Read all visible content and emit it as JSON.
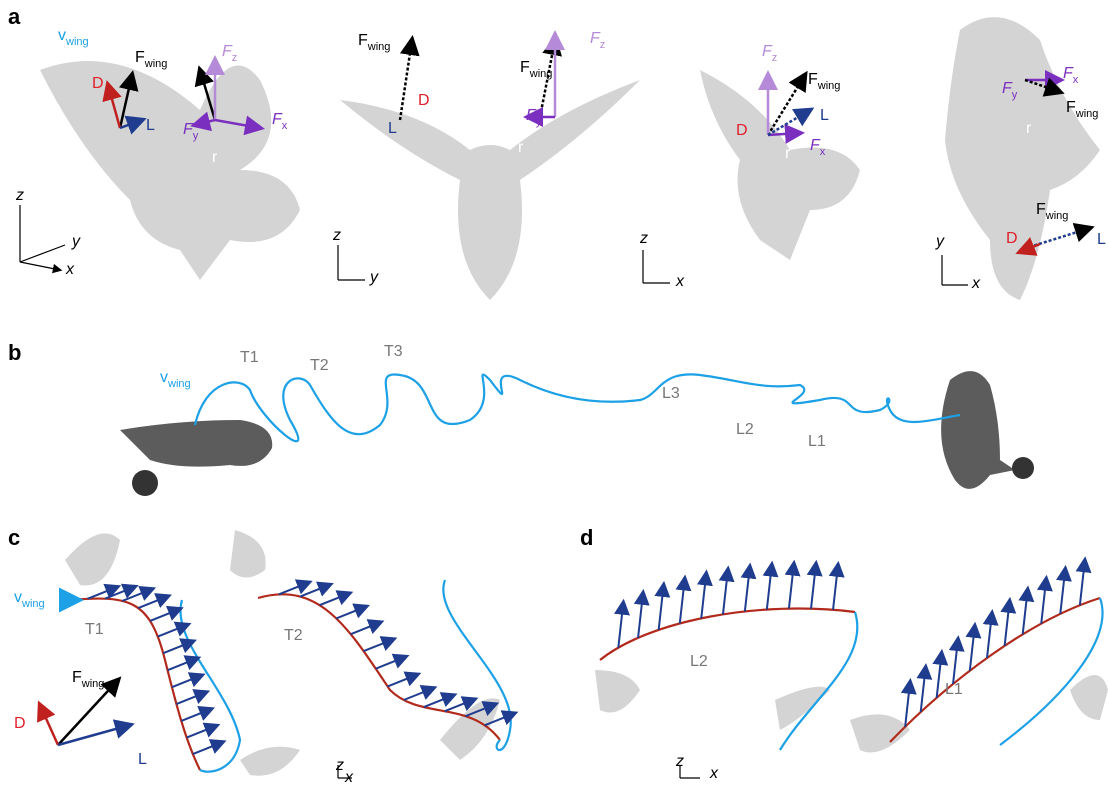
{
  "panels": [
    {
      "letter": "a",
      "labels": [
        {
          "base": "v",
          "sub": "wing"
        },
        {
          "base": "F",
          "sub": "wing"
        },
        "D",
        "L",
        {
          "base": "F",
          "sub": "z"
        },
        {
          "base": "F",
          "sub": "y"
        },
        {
          "base": "F",
          "sub": "x"
        },
        "r",
        "z",
        "y",
        "x",
        "L",
        "D",
        {
          "base": "F",
          "sub": "wing"
        },
        {
          "base": "F",
          "sub": "wing"
        },
        {
          "base": "F",
          "sub": "z"
        },
        {
          "base": "F",
          "sub": "y"
        },
        "r",
        "z",
        "y",
        {
          "base": "F",
          "sub": "z"
        },
        {
          "base": "F",
          "sub": "wing"
        },
        "L",
        "D",
        {
          "base": "F",
          "sub": "x"
        },
        "r",
        "z",
        "x",
        {
          "base": "F",
          "sub": "x"
        },
        {
          "base": "F",
          "sub": "y"
        },
        {
          "base": "F",
          "sub": "wing"
        },
        "r",
        {
          "base": "F",
          "sub": "wing"
        },
        "D",
        "L",
        "y",
        "x"
      ]
    },
    {
      "letter": "b",
      "labels": [
        {
          "base": "v",
          "sub": "wing"
        },
        "T1",
        "T2",
        "T3",
        "L3",
        "L2",
        "L1"
      ]
    },
    {
      "letter": "c",
      "labels": [
        {
          "base": "v",
          "sub": "wing"
        },
        "T1",
        {
          "base": "F",
          "sub": "wing"
        },
        "D",
        "L",
        "T2",
        "z",
        "x"
      ]
    },
    {
      "letter": "d",
      "labels": [
        "L2",
        "L1",
        "z",
        "x"
      ]
    }
  ]
}
